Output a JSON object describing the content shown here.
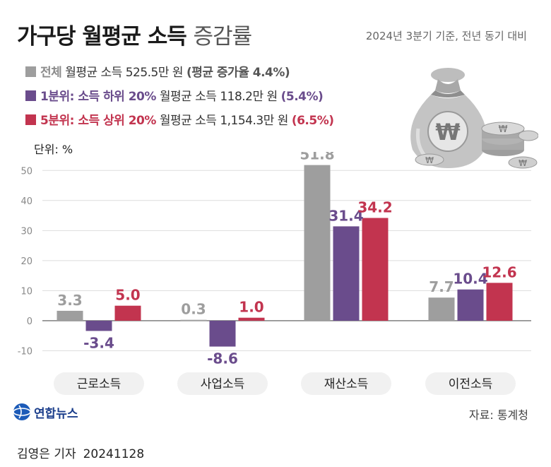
{
  "title": {
    "bold": "가구당 월평균 소득",
    "light": "증감률"
  },
  "subtitle": "2024년 3분기 기준, 전년 동기 대비",
  "legend": [
    {
      "label": "전체",
      "desc": "월평균 소득 525.5만 원",
      "note": "(평균 증가율 4.4%)",
      "color": "#9e9e9e",
      "label_color": "#8c8c8c",
      "note_color": "#555555"
    },
    {
      "label": "1분위: 소득 하위 20%",
      "desc": "월평균 소득 118.2만 원",
      "note": "(5.4%)",
      "color": "#6a4c8c",
      "label_color": "#6a4c8c",
      "note_color": "#6a4c8c"
    },
    {
      "label": "5분위: 소득 상위 20%",
      "desc": "월평균 소득 1,154.3만 원",
      "note": "(6.5%)",
      "color": "#c2344f",
      "label_color": "#c2344f",
      "note_color": "#c2344f"
    }
  ],
  "unit_label": "단위: %",
  "chart_data": {
    "type": "bar",
    "categories": [
      "근로소득",
      "사업소득",
      "재산소득",
      "이전소득"
    ],
    "series": [
      {
        "name": "전체",
        "values": [
          3.3,
          0.3,
          51.8,
          7.7
        ],
        "color": "#9e9e9e"
      },
      {
        "name": "1분위",
        "values": [
          -3.4,
          -8.6,
          31.4,
          10.4
        ],
        "color": "#6a4c8c"
      },
      {
        "name": "5분위",
        "values": [
          5.0,
          1.0,
          34.2,
          12.6
        ],
        "color": "#c2344f"
      }
    ],
    "data_labels": [
      [
        "3.3",
        "0.3",
        "51.8",
        "7.7"
      ],
      [
        "-3.4",
        "-8.6",
        "31.4",
        "10.4"
      ],
      [
        "5.0",
        "1.0",
        "34.2",
        "12.6"
      ]
    ],
    "yticks": [
      "50",
      "40",
      "30",
      "20",
      "10",
      "0",
      "-10"
    ],
    "ylim": [
      -12,
      55
    ],
    "grid": true
  },
  "footer": {
    "logo_text": "연합뉴스",
    "source": "자료: 통계청"
  },
  "credit": {
    "author": "김영은 기자",
    "date": "20241128"
  }
}
